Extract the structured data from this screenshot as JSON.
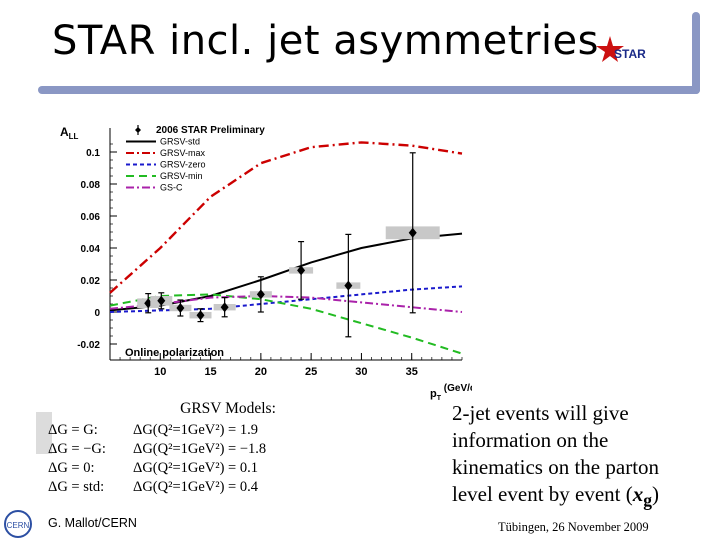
{
  "slide": {
    "title": "STAR incl. jet asymmetries",
    "logo_text": "STAR",
    "footer_left": "G. Mallot/CERN",
    "footer_right": "Tübingen, 26 November 2009",
    "cern_logo_text": "CERN"
  },
  "models": {
    "title": "GRSV Models:",
    "rows": [
      {
        "dg": "ΔG =  G:",
        "value": "ΔG(Q²=1GeV²) =  1.9"
      },
      {
        "dg": "ΔG = −G:",
        "value": "ΔG(Q²=1GeV²) = −1.8"
      },
      {
        "dg": "ΔG =  0:",
        "value": "ΔG(Q²=1GeV²) =  0.1"
      },
      {
        "dg": "ΔG = std:",
        "value": "ΔG(Q²=1GeV²) =  0.4"
      }
    ]
  },
  "description": {
    "line1": "2-jet events will give",
    "line2": "information on the",
    "line3": "kinematics on the parton",
    "line4_prefix": "level event by event (",
    "line4_var": "x",
    "line4_sub": "g",
    "line4_suffix": ")"
  },
  "chart_data": {
    "type": "scatter",
    "title": "2006 STAR Preliminary",
    "ylabel": "A_LL",
    "xlabel": "p_T (GeV/c)",
    "xlim": [
      5,
      40
    ],
    "ylim": [
      -0.03,
      0.115
    ],
    "x_ticks": [
      10,
      15,
      20,
      25,
      30,
      35
    ],
    "y_ticks": [
      -0.02,
      0,
      0.02,
      0.04,
      0.06,
      0.08,
      0.1
    ],
    "y_tick_labels": [
      "-0.02",
      "0",
      "0.02",
      "0.04",
      "0.06",
      "0.08",
      "0.1"
    ],
    "annotation": "Online polarization",
    "legend": [
      {
        "label": "2006 STAR Preliminary",
        "color": "#000000",
        "style": "marker"
      },
      {
        "label": "GRSV-std",
        "color": "#000000",
        "style": "solid"
      },
      {
        "label": "GRSV-max",
        "color": "#cc0000",
        "style": "dashdot"
      },
      {
        "label": "GRSV-zero",
        "color": "#1a1acc",
        "style": "dashed"
      },
      {
        "label": "GRSV-min",
        "color": "#22bb22",
        "style": "longdash"
      },
      {
        "label": "GS-C",
        "color": "#aa22aa",
        "style": "dashdot"
      }
    ],
    "data_points": [
      {
        "x": 8.8,
        "y": 0.0055,
        "err": 0.006,
        "sys": 0.003
      },
      {
        "x": 10.1,
        "y": 0.007,
        "err": 0.005,
        "sys": 0.003
      },
      {
        "x": 12.0,
        "y": 0.0025,
        "err": 0.005,
        "sys": 0.002
      },
      {
        "x": 14.0,
        "y": -0.002,
        "err": 0.004,
        "sys": 0.002
      },
      {
        "x": 16.4,
        "y": 0.003,
        "err": 0.006,
        "sys": 0.002
      },
      {
        "x": 20.0,
        "y": 0.011,
        "err": 0.011,
        "sys": 0.002
      },
      {
        "x": 24.0,
        "y": 0.026,
        "err": 0.018,
        "sys": 0.002
      },
      {
        "x": 28.7,
        "y": 0.0165,
        "err": 0.032,
        "sys": 0.002
      },
      {
        "x": 35.1,
        "y": 0.0495,
        "err": 0.05,
        "sys": 0.004
      }
    ],
    "series": [
      {
        "name": "GRSV-std",
        "color": "#000000",
        "dash": "",
        "x": [
          5,
          10,
          15,
          20,
          25,
          30,
          35,
          40
        ],
        "y": [
          0.001,
          0.004,
          0.01,
          0.02,
          0.031,
          0.04,
          0.046,
          0.049
        ]
      },
      {
        "name": "GRSV-max",
        "color": "#cc0000",
        "dash": "10,4,2,4",
        "x": [
          5,
          10,
          15,
          20,
          25,
          30,
          35,
          40
        ],
        "y": [
          0.012,
          0.04,
          0.072,
          0.093,
          0.103,
          0.106,
          0.104,
          0.099
        ]
      },
      {
        "name": "GRSV-zero",
        "color": "#1a1acc",
        "dash": "4,3",
        "x": [
          5,
          10,
          15,
          20,
          25,
          30,
          35,
          40
        ],
        "y": [
          0.0,
          0.001,
          0.002,
          0.005,
          0.008,
          0.011,
          0.014,
          0.016
        ]
      },
      {
        "name": "GRSV-min",
        "color": "#22bb22",
        "dash": "8,5",
        "x": [
          5,
          10,
          15,
          20,
          25,
          30,
          35,
          40
        ],
        "y": [
          0.004,
          0.01,
          0.011,
          0.008,
          0.002,
          -0.007,
          -0.016,
          -0.026
        ]
      },
      {
        "name": "GS-C",
        "color": "#aa22aa",
        "dash": "8,3,2,3",
        "x": [
          5,
          10,
          15,
          20,
          25,
          30,
          35,
          40
        ],
        "y": [
          0.002,
          0.005,
          0.009,
          0.01,
          0.009,
          0.006,
          0.003,
          0.0
        ]
      }
    ]
  }
}
